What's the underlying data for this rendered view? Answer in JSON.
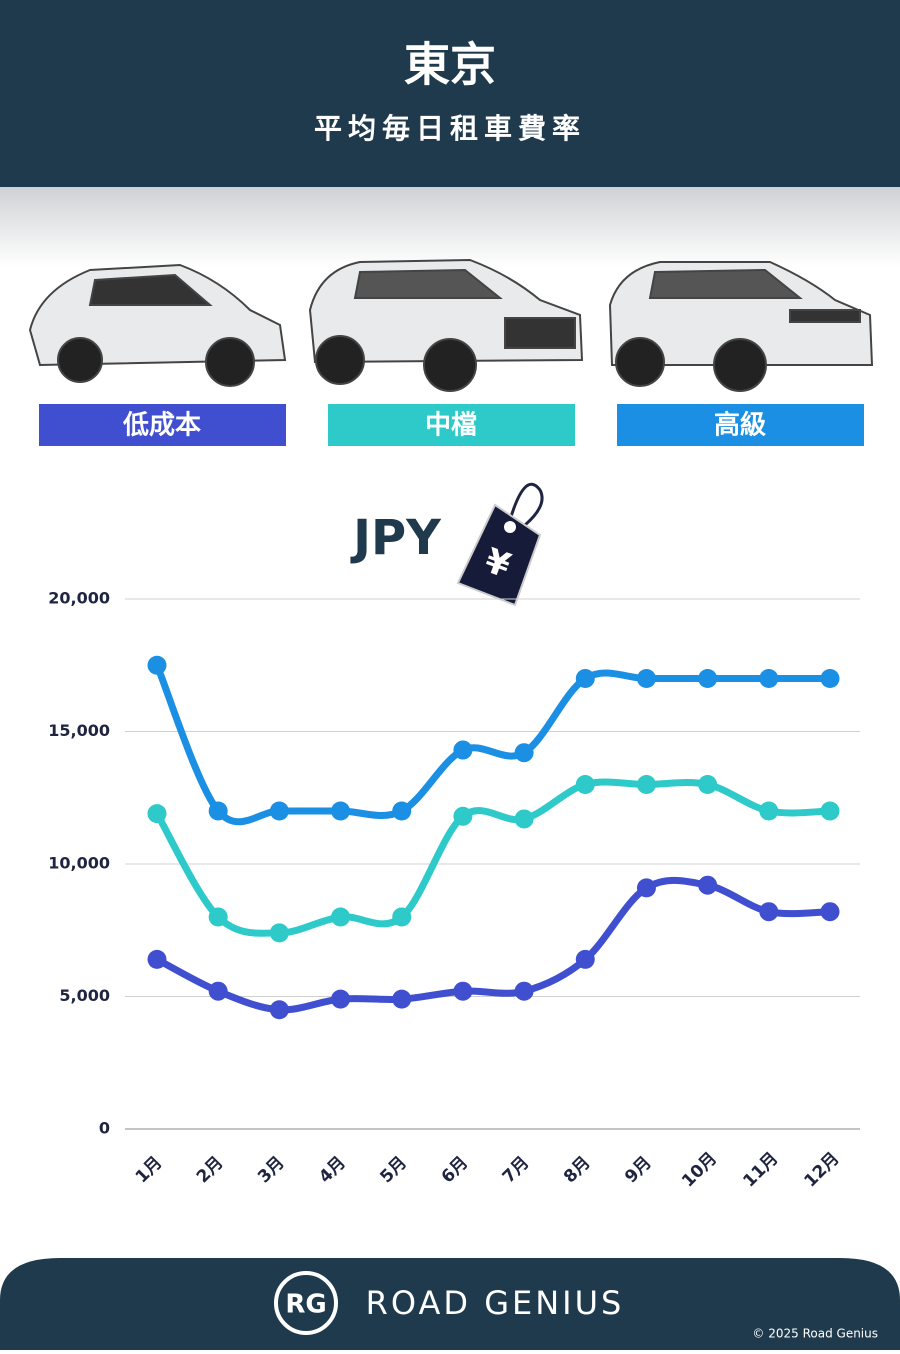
{
  "header": {
    "title": "東京",
    "subtitle": "平均毎日租車費率"
  },
  "chart_data": {
    "type": "line",
    "unit": "JPY",
    "currency_symbol": "¥",
    "categories": [
      "1月",
      "2月",
      "3月",
      "4月",
      "5月",
      "6月",
      "7月",
      "8月",
      "9月",
      "10月",
      "11月",
      "12月"
    ],
    "series": [
      {
        "name": "低成本",
        "color": "#3f4fd0",
        "values": [
          6400,
          5200,
          4500,
          4900,
          4900,
          5200,
          5200,
          6400,
          9100,
          9200,
          8200,
          8200
        ]
      },
      {
        "name": "中檔",
        "color": "#2ec9c9",
        "values": [
          11900,
          8000,
          7400,
          8000,
          8000,
          11800,
          11700,
          13000,
          13000,
          13000,
          12000,
          12000
        ]
      },
      {
        "name": "高級",
        "color": "#1a8fe3",
        "values": [
          17500,
          12000,
          12000,
          12000,
          12000,
          14300,
          14200,
          17000,
          17000,
          17000,
          17000,
          17000
        ]
      }
    ],
    "ylim": [
      0,
      20000
    ],
    "yticks": [
      0,
      {
        "value": 5000,
        "label": "5,000"
      },
      {
        "value": 10000,
        "label": "10,000"
      },
      {
        "value": 15000,
        "label": "15,000"
      },
      {
        "value": 20000,
        "label": "20,000"
      }
    ],
    "grid": true
  },
  "footer": {
    "logo": "RG",
    "brand": "ROAD GENIUS",
    "copyright": "© 2025 Road Genius"
  }
}
